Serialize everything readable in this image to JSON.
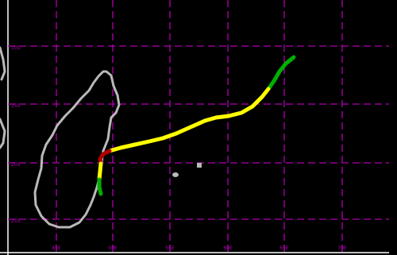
{
  "map": {
    "background": "#000000",
    "grid_color": "#b000b0",
    "coastline_color": "#b9b9b9",
    "latitude_labels": [
      "10S",
      "15S",
      "20S",
      "25S"
    ],
    "longitude_labels": [
      "45E",
      "50E",
      "55E",
      "60E",
      "65E",
      "70E"
    ],
    "track_legend_colors": {
      "tropical_depression": "#00b000",
      "tropical_storm": "#ffff00",
      "cyclone": "#b00000"
    }
  }
}
